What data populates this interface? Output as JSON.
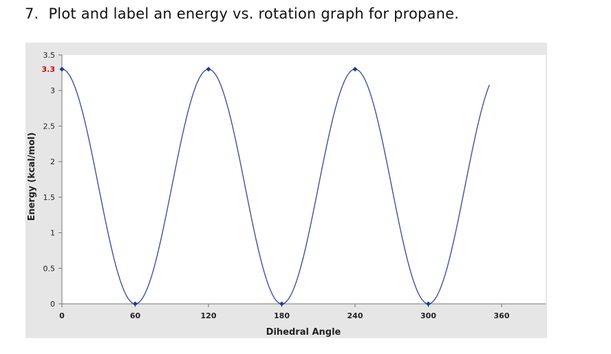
{
  "question": {
    "number": "7.",
    "text": "Plot and label an energy vs. rotation graph for propane."
  },
  "colors": {
    "curve": "#3f4f9f",
    "marker": "#1f3a93",
    "highlight_label": "#cc0000",
    "panel_background": "#e6e6e6",
    "plot_background": "#ffffff"
  },
  "chart_data": {
    "type": "line",
    "title": "",
    "xlabel": "Dihedral Angle",
    "ylabel": "Energy (kcal/mol)",
    "xlim": [
      0,
      360
    ],
    "ylim": [
      0,
      3.5
    ],
    "x_ticks": [
      0,
      60,
      120,
      180,
      240,
      300,
      360
    ],
    "x_tick_labels": [
      "0",
      "60",
      "120",
      "180",
      "240",
      "300",
      "360"
    ],
    "y_ticks": [
      0,
      0.5,
      1,
      1.5,
      2,
      2.5,
      3,
      3.5
    ],
    "y_tick_labels": [
      "0",
      "0.5",
      "1",
      "1.5",
      "2",
      "2.5",
      "3",
      "3.5"
    ],
    "highlight_y_tick": {
      "value": 3.3,
      "label": "3.3"
    },
    "grid": false,
    "legend": "none",
    "series": [
      {
        "x": [
          0,
          60,
          120,
          180,
          240,
          300,
          350
        ],
        "y": [
          3.3,
          0,
          3.3,
          0,
          3.3,
          0,
          3.0
        ],
        "markers_at": [
          0,
          60,
          120,
          180,
          240,
          300
        ]
      }
    ]
  }
}
